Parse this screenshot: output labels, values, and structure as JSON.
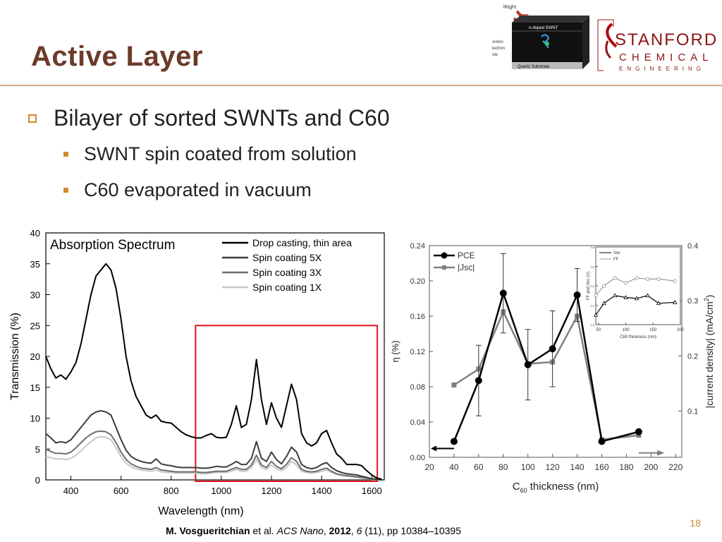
{
  "slide": {
    "title": "Active Layer",
    "bullet_main": "Bilayer of sorted SWNTs and C60",
    "sub_bullets": [
      "SWNT spin coated from solution",
      "C60 evaporated in vacuum"
    ],
    "slide_number": "18",
    "citation": {
      "author": "M. Vosgueritchian",
      "etal": " et al. ",
      "journal": "ACS Nano",
      "sep1": ", ",
      "year": "2012",
      "sep2": ", ",
      "volume": "6",
      "rest": " (11), pp 10384–10395"
    }
  },
  "logo": {
    "line1": "STANFORD",
    "line2": "CHEMICAL",
    "line3": "ENGINEERING"
  },
  "device_diagram": {
    "light_label": "lRight",
    "layer_top": "n-doped SWNT",
    "substrate": "Quartz Substrate",
    "side_labels": [
      "xciton",
      "lectron",
      "ole"
    ]
  },
  "chart_data": [
    {
      "type": "line",
      "title": "Absorption Spectrum",
      "xlabel": "Wavelength (nm)",
      "ylabel": "Transmission (%)",
      "xlim": [
        300,
        1650
      ],
      "ylim": [
        0,
        40
      ],
      "xticks": [
        400,
        600,
        800,
        1000,
        1200,
        1400,
        1600
      ],
      "yticks": [
        0,
        5,
        10,
        15,
        20,
        25,
        30,
        35,
        40
      ],
      "legend_position": "top-right",
      "highlight_region": [
        900,
        1625
      ],
      "x": [
        300,
        320,
        340,
        360,
        380,
        400,
        420,
        440,
        460,
        480,
        500,
        520,
        540,
        560,
        580,
        600,
        620,
        640,
        660,
        680,
        700,
        720,
        740,
        760,
        780,
        800,
        820,
        840,
        860,
        880,
        900,
        920,
        940,
        960,
        980,
        1000,
        1020,
        1040,
        1060,
        1080,
        1100,
        1120,
        1140,
        1160,
        1180,
        1200,
        1220,
        1240,
        1260,
        1280,
        1300,
        1320,
        1340,
        1360,
        1380,
        1400,
        1420,
        1440,
        1460,
        1480,
        1500,
        1520,
        1540,
        1560,
        1580,
        1600,
        1620,
        1640
      ],
      "series": [
        {
          "name": "Drop casting, thin area",
          "color": "#000000",
          "values": [
            20,
            18,
            16.5,
            17,
            16.3,
            17.5,
            19,
            22,
            26,
            30,
            33,
            34,
            35,
            34,
            31,
            26,
            20,
            16,
            13.5,
            12,
            10.5,
            10,
            10.5,
            9.5,
            9.3,
            9.2,
            8.5,
            7.8,
            7.3,
            7,
            6.8,
            6.8,
            7.2,
            7.5,
            6.9,
            6.8,
            6.9,
            9,
            12,
            8.5,
            9,
            13,
            19.5,
            13,
            9,
            12.5,
            10,
            8.5,
            12,
            15.5,
            13,
            7.5,
            6,
            5.5,
            6,
            7.5,
            8,
            6,
            4.2,
            3.5,
            2.5,
            2.5,
            2.5,
            2.3,
            1.5,
            0.8,
            0.3,
            0.1
          ]
        },
        {
          "name": "Spin coating 5X",
          "color": "#3c3c3c",
          "values": [
            7.5,
            6.8,
            6,
            6.2,
            6,
            6.5,
            7.5,
            8.5,
            9.5,
            10.5,
            11,
            11.2,
            11,
            10.5,
            8.5,
            6.5,
            4.8,
            3.8,
            3.3,
            3,
            2.8,
            2.7,
            3.4,
            2.6,
            2.4,
            2.3,
            2.1,
            2,
            2,
            2,
            2,
            1.9,
            1.9,
            2,
            2.2,
            2.1,
            2.1,
            2.5,
            3,
            2.5,
            2.5,
            3.5,
            6.2,
            3.5,
            3,
            4.5,
            3.3,
            2.6,
            3.8,
            5.3,
            4.5,
            2.5,
            2,
            1.8,
            2,
            2.5,
            2.8,
            2,
            1.5,
            1.2,
            1,
            0.9,
            0.8,
            0.6,
            0.4,
            0.2,
            0.1,
            0
          ]
        },
        {
          "name": "Spin coating 3X",
          "color": "#6e6e6e",
          "values": [
            5,
            4.6,
            4.3,
            4.3,
            4.2,
            4.5,
            5.2,
            6,
            6.8,
            7.4,
            7.8,
            7.9,
            7.8,
            7.3,
            6,
            4.5,
            3.3,
            2.6,
            2.2,
            1.9,
            1.8,
            1.7,
            2,
            1.6,
            1.5,
            1.4,
            1.3,
            1.3,
            1.3,
            1.3,
            1.3,
            1.2,
            1.2,
            1.3,
            1.4,
            1.4,
            1.4,
            1.7,
            2,
            1.7,
            1.7,
            2.4,
            4,
            2.4,
            2,
            3,
            2.2,
            1.8,
            2.5,
            3.6,
            3,
            1.7,
            1.4,
            1.3,
            1.4,
            1.7,
            1.9,
            1.4,
            1,
            0.8,
            0.7,
            0.6,
            0.5,
            0.4,
            0.3,
            0.1,
            0.05,
            0
          ]
        },
        {
          "name": "Spin coating 1X",
          "color": "#c8c8c8",
          "values": [
            3.8,
            3.6,
            3.4,
            3.4,
            3.3,
            3.5,
            4,
            4.7,
            5.5,
            6.2,
            6.8,
            7,
            6.9,
            6.5,
            5.2,
            3.8,
            2.7,
            2.1,
            1.8,
            1.6,
            1.5,
            1.4,
            1.6,
            1.3,
            1.2,
            1.2,
            1.1,
            1.1,
            1.1,
            1.1,
            1.1,
            1,
            1,
            1.1,
            1.2,
            1.2,
            1.2,
            1.4,
            1.7,
            1.4,
            1.4,
            2,
            3.3,
            2,
            1.7,
            2.4,
            1.8,
            1.5,
            2,
            3,
            2.4,
            1.4,
            1.2,
            1.1,
            1.2,
            1.4,
            1.6,
            1.2,
            0.9,
            0.7,
            0.6,
            0.5,
            0.4,
            0.3,
            0.2,
            0.1,
            0.05,
            0
          ]
        }
      ]
    },
    {
      "type": "scatter",
      "xlabel_main": "C",
      "xlabel_sub": "60",
      "xlabel_rest": " thickness (nm)",
      "ylabel_left": "η (%)",
      "ylabel_right": "|current density| (mA/cm",
      "ylabel_right_sup": "2",
      "ylabel_right_end": ")",
      "xlim": [
        20,
        225
      ],
      "ylim_left": [
        0,
        0.24
      ],
      "ylim_right": [
        0.016,
        0.4
      ],
      "xticks": [
        20,
        40,
        60,
        80,
        100,
        120,
        140,
        160,
        180,
        200,
        220
      ],
      "yticks_left": [
        "0.00",
        "0.04",
        "0.08",
        "0.12",
        "0.16",
        "0.20",
        "0.24"
      ],
      "yticks_right": [
        "0.1",
        "0.2",
        "0.3",
        "0.4"
      ],
      "legend_position": "top-left",
      "series": [
        {
          "name": "PCE",
          "color": "#000000",
          "x": [
            40,
            60,
            80,
            100,
            120,
            140,
            160,
            190
          ],
          "y": [
            0.018,
            0.087,
            0.186,
            0.105,
            0.123,
            0.184,
            0.018,
            0.029
          ],
          "error": [
            0,
            0.04,
            0.045,
            0.04,
            0.043,
            0.03,
            0,
            0
          ]
        },
        {
          "name": "|Jsc|",
          "color": "#808080",
          "x": [
            40,
            60,
            80,
            100,
            120,
            140,
            160,
            190
          ],
          "y": [
            0.082,
            0.1,
            0.165,
            0.106,
            0.108,
            0.16,
            0.02,
            0.025
          ]
        }
      ],
      "inset": {
        "xlabel": "C60 thickness (nm)",
        "ylabel": "FF and Voc (V)",
        "xlim": [
          45,
          200
        ],
        "ylim": [
          0,
          0.8
        ],
        "xticks": [
          50,
          100,
          150,
          200
        ],
        "yticks": [
          "0.0",
          "0.2",
          "0.4",
          "0.6",
          "0.8"
        ],
        "series": [
          {
            "name": "Voc",
            "color": "#000000",
            "x": [
              45,
              60,
              80,
              100,
              120,
              140,
              160,
              190
            ],
            "y": [
              0.1,
              0.22,
              0.3,
              0.28,
              0.27,
              0.3,
              0.22,
              0.23
            ]
          },
          {
            "name": "FF",
            "color": "#999999",
            "x": [
              45,
              60,
              80,
              100,
              120,
              140,
              160,
              190
            ],
            "y": [
              0.3,
              0.4,
              0.48,
              0.43,
              0.48,
              0.47,
              0.47,
              0.45
            ]
          }
        ]
      }
    }
  ]
}
